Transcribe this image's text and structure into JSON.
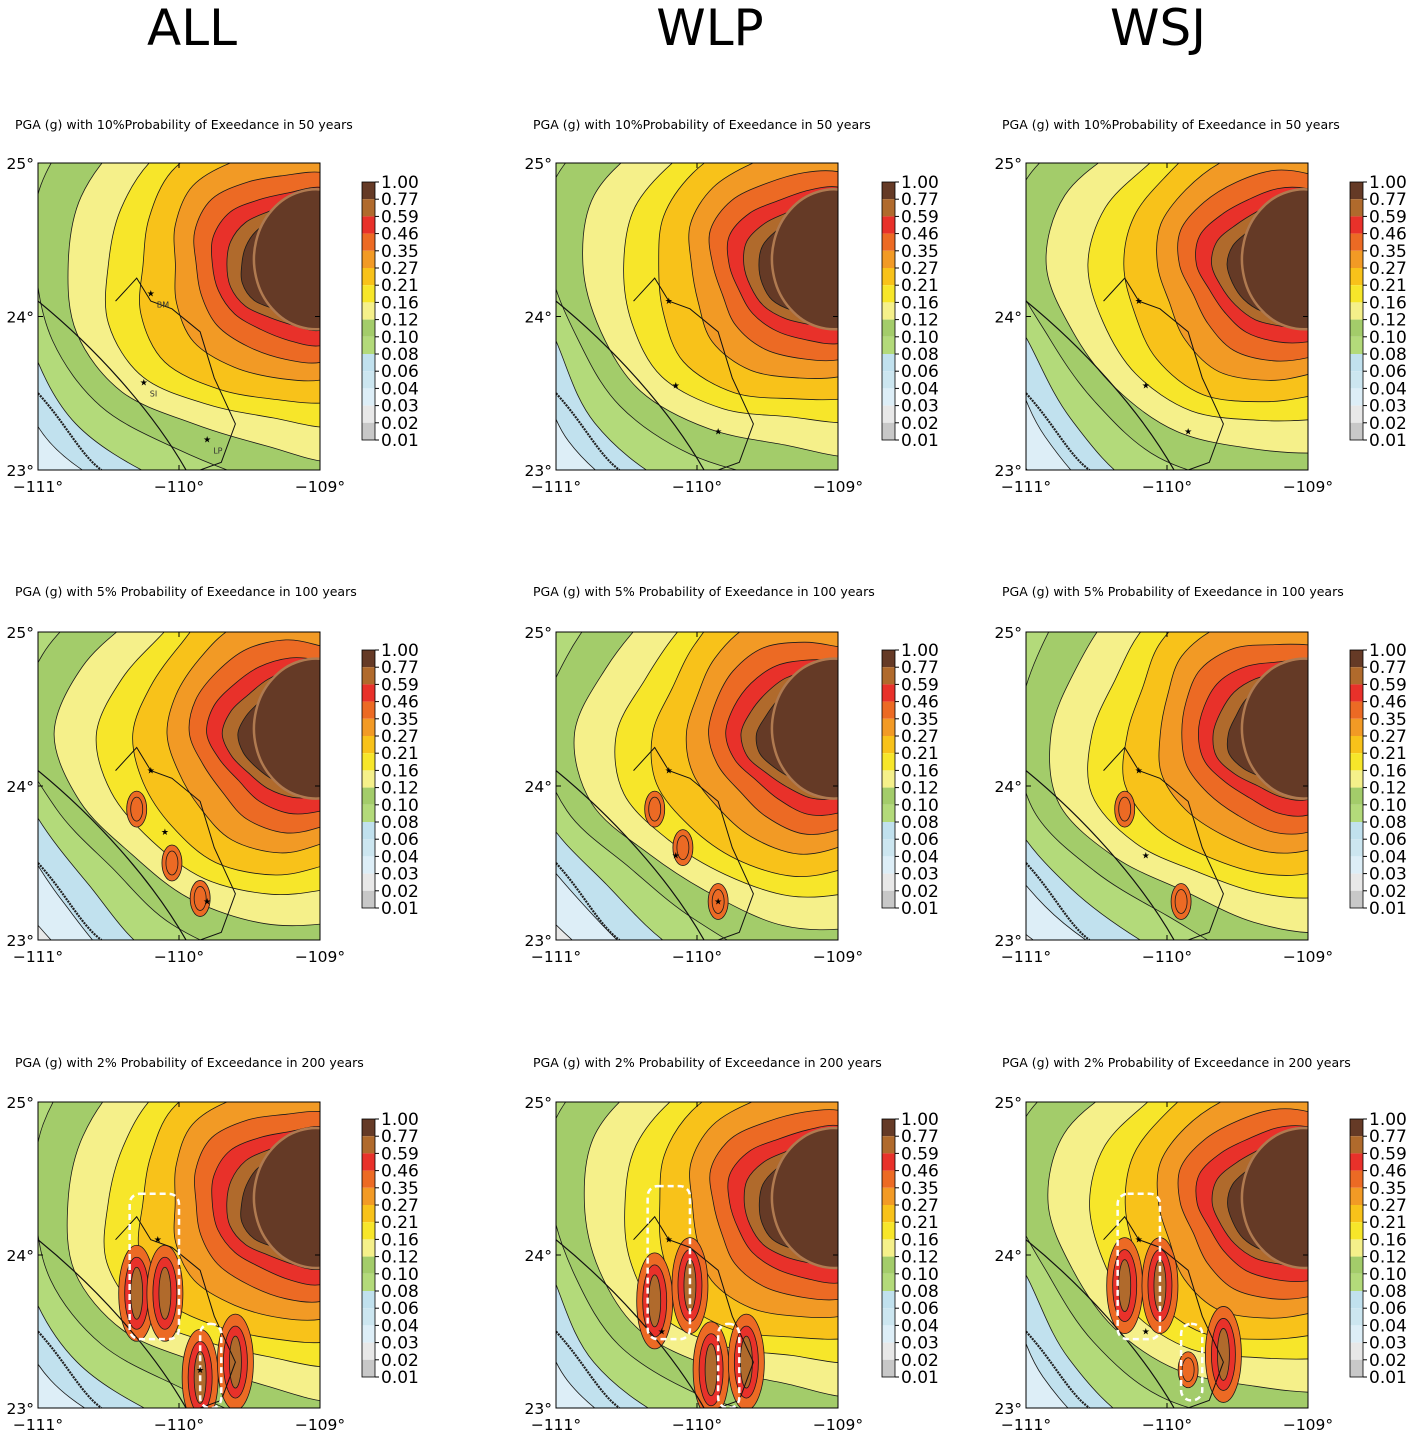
{
  "figure": {
    "columns": [
      "ALL",
      "WLP",
      "WSJ"
    ]
  },
  "chart_data": [
    {
      "type": "heatmap",
      "row": 0,
      "col": 0,
      "model": "ALL",
      "title": "PGA (g) with 10%Probability of Exeedance in 50 years",
      "x_ticks": [
        "−111°",
        "−110°",
        "−109°"
      ],
      "y_ticks": [
        "25°",
        "24°",
        "23°"
      ],
      "xlim": [
        -111,
        -109
      ],
      "ylim": [
        23,
        25
      ],
      "max_class": 10,
      "hot_spots": [],
      "dashed_zones": [],
      "sites": [
        {
          "lon": -110.2,
          "lat": 24.15,
          "label": "BM"
        },
        {
          "lon": -110.25,
          "lat": 23.57,
          "label": "SI"
        },
        {
          "lon": -109.8,
          "lat": 23.2,
          "label": "LP"
        }
      ]
    },
    {
      "type": "heatmap",
      "row": 0,
      "col": 1,
      "model": "WLP",
      "title": "PGA (g) with 10%Probability of Exeedance in 50 years",
      "x_ticks": [
        "−111°",
        "−110°",
        "−109°"
      ],
      "y_ticks": [
        "25°",
        "24°",
        "23°"
      ],
      "xlim": [
        -111,
        -109
      ],
      "ylim": [
        23,
        25
      ],
      "max_class": 10,
      "hot_spots": [],
      "dashed_zones": [],
      "sites": [
        {
          "lon": -110.2,
          "lat": 24.1,
          "label": ""
        },
        {
          "lon": -110.15,
          "lat": 23.55,
          "label": ""
        },
        {
          "lon": -109.85,
          "lat": 23.25,
          "label": ""
        }
      ]
    },
    {
      "type": "heatmap",
      "row": 0,
      "col": 2,
      "model": "WSJ",
      "title": "PGA (g) with 10%Probability of Exeedance in 50 years",
      "x_ticks": [
        "−111°",
        "−110°",
        "−109°"
      ],
      "y_ticks": [
        "25°",
        "24°",
        "23°"
      ],
      "xlim": [
        -111,
        -109
      ],
      "ylim": [
        23,
        25
      ],
      "max_class": 10,
      "hot_spots": [],
      "dashed_zones": [],
      "sites": [
        {
          "lon": -110.2,
          "lat": 24.1,
          "label": ""
        },
        {
          "lon": -110.15,
          "lat": 23.55,
          "label": ""
        },
        {
          "lon": -109.85,
          "lat": 23.25,
          "label": ""
        }
      ]
    },
    {
      "type": "heatmap",
      "row": 1,
      "col": 0,
      "model": "ALL",
      "title": "PGA (g) with 5% Probability of Exeedance in 100 years",
      "x_ticks": [
        "−111°",
        "−110°",
        "−109°"
      ],
      "y_ticks": [
        "25°",
        "24°",
        "23°"
      ],
      "xlim": [
        -111,
        -109
      ],
      "ylim": [
        23,
        25
      ],
      "max_class": 10,
      "dashed_zones": [],
      "hot_spots": [
        {
          "lon": -110.3,
          "lat": 23.85,
          "level": 9
        },
        {
          "lon": -110.05,
          "lat": 23.5,
          "level": 9
        },
        {
          "lon": -109.85,
          "lat": 23.27,
          "level": 9
        }
      ],
      "sites": [
        {
          "lon": -110.2,
          "lat": 24.1,
          "label": ""
        },
        {
          "lon": -110.1,
          "lat": 23.7,
          "label": ""
        },
        {
          "lon": -109.8,
          "lat": 23.25,
          "label": ""
        }
      ]
    },
    {
      "type": "heatmap",
      "row": 1,
      "col": 1,
      "model": "WLP",
      "title": "PGA (g) with 5% Probability of Exeedance in 100 years",
      "x_ticks": [
        "−111°",
        "−110°",
        "−109°"
      ],
      "y_ticks": [
        "25°",
        "24°",
        "23°"
      ],
      "xlim": [
        -111,
        -109
      ],
      "ylim": [
        23,
        25
      ],
      "max_class": 10,
      "dashed_zones": [],
      "hot_spots": [
        {
          "lon": -110.3,
          "lat": 23.85,
          "level": 9
        },
        {
          "lon": -110.1,
          "lat": 23.6,
          "level": 9
        },
        {
          "lon": -109.85,
          "lat": 23.25,
          "level": 9
        }
      ],
      "sites": [
        {
          "lon": -110.2,
          "lat": 24.1,
          "label": ""
        },
        {
          "lon": -110.15,
          "lat": 23.55,
          "label": ""
        },
        {
          "lon": -109.85,
          "lat": 23.25,
          "label": ""
        }
      ]
    },
    {
      "type": "heatmap",
      "row": 1,
      "col": 2,
      "model": "WSJ",
      "title": "PGA (g) with 5% Probability of Exeedance in 100 years",
      "x_ticks": [
        "−111°",
        "−110°",
        "−109°"
      ],
      "y_ticks": [
        "25°",
        "24°",
        "23°"
      ],
      "xlim": [
        -111,
        -109
      ],
      "ylim": [
        23,
        25
      ],
      "max_class": 10,
      "dashed_zones": [],
      "hot_spots": [
        {
          "lon": -110.3,
          "lat": 23.85,
          "level": 9
        },
        {
          "lon": -109.9,
          "lat": 23.25,
          "level": 9
        }
      ],
      "sites": [
        {
          "lon": -110.2,
          "lat": 24.1,
          "label": ""
        },
        {
          "lon": -110.15,
          "lat": 23.55,
          "label": ""
        }
      ]
    },
    {
      "type": "heatmap",
      "row": 2,
      "col": 0,
      "model": "ALL",
      "title": "PGA (g) with 2% Probability of Exceedance in 200 years",
      "x_ticks": [
        "−111°",
        "−110°",
        "−109°"
      ],
      "y_ticks": [
        "25°",
        "24°",
        "23°"
      ],
      "xlim": [
        -111,
        -109
      ],
      "ylim": [
        23,
        25
      ],
      "max_class": 10,
      "hot_spots": [
        {
          "lon": -110.3,
          "lat": 23.75,
          "level": 11
        },
        {
          "lon": -110.1,
          "lat": 23.75,
          "level": 11
        },
        {
          "lon": -109.85,
          "lat": 23.2,
          "level": 11
        },
        {
          "lon": -109.6,
          "lat": 23.3,
          "level": 11
        }
      ],
      "dashed_zones": [
        {
          "lon_min": -110.35,
          "lon_max": -110.0,
          "lat_min": 23.45,
          "lat_max": 24.4
        },
        {
          "lon_min": -109.85,
          "lon_max": -109.7,
          "lat_min": 23.0,
          "lat_max": 23.55
        }
      ],
      "sites": [
        {
          "lon": -110.15,
          "lat": 24.1,
          "label": ""
        },
        {
          "lon": -109.85,
          "lat": 23.25,
          "label": ""
        }
      ]
    },
    {
      "type": "heatmap",
      "row": 2,
      "col": 1,
      "model": "WLP",
      "title": "PGA (g) with 2% Probability of Exceedance in 200 years",
      "x_ticks": [
        "−111°",
        "−110°",
        "−109°"
      ],
      "y_ticks": [
        "25°",
        "24°",
        "23°"
      ],
      "xlim": [
        -111,
        -109
      ],
      "ylim": [
        23,
        25
      ],
      "max_class": 10,
      "hot_spots": [
        {
          "lon": -110.3,
          "lat": 23.7,
          "level": 11
        },
        {
          "lon": -110.05,
          "lat": 23.8,
          "level": 11
        },
        {
          "lon": -109.9,
          "lat": 23.25,
          "level": 11
        },
        {
          "lon": -109.65,
          "lat": 23.3,
          "level": 11
        }
      ],
      "dashed_zones": [
        {
          "lon_min": -110.35,
          "lon_max": -110.05,
          "lat_min": 23.45,
          "lat_max": 24.45
        },
        {
          "lon_min": -109.85,
          "lon_max": -109.7,
          "lat_min": 23.0,
          "lat_max": 23.55
        }
      ],
      "sites": [
        {
          "lon": -110.2,
          "lat": 24.1,
          "label": ""
        },
        {
          "lon": -110.25,
          "lat": 23.5,
          "label": ""
        }
      ]
    },
    {
      "type": "heatmap",
      "row": 2,
      "col": 2,
      "model": "WSJ",
      "title": "PGA (g) with 2% Probability of Exceedance in 200 years",
      "x_ticks": [
        "−111°",
        "−110°",
        "−109°"
      ],
      "y_ticks": [
        "25°",
        "24°",
        "23°"
      ],
      "xlim": [
        -111,
        -109
      ],
      "ylim": [
        23,
        25
      ],
      "max_class": 10,
      "hot_spots": [
        {
          "lon": -110.3,
          "lat": 23.8,
          "level": 11
        },
        {
          "lon": -110.05,
          "lat": 23.8,
          "level": 11
        },
        {
          "lon": -109.85,
          "lat": 23.25,
          "level": 10
        },
        {
          "lon": -109.6,
          "lat": 23.35,
          "level": 11
        }
      ],
      "dashed_zones": [
        {
          "lon_min": -110.35,
          "lon_max": -110.05,
          "lat_min": 23.45,
          "lat_max": 24.4
        },
        {
          "lon_min": -109.9,
          "lon_max": -109.75,
          "lat_min": 23.05,
          "lat_max": 23.55
        }
      ],
      "sites": [
        {
          "lon": -110.2,
          "lat": 24.1,
          "label": ""
        },
        {
          "lon": -110.15,
          "lat": 23.5,
          "label": ""
        }
      ]
    }
  ],
  "colorbar": {
    "levels": [
      "1.00",
      "0.77",
      "0.59",
      "0.46",
      "0.35",
      "0.27",
      "0.21",
      "0.16",
      "0.12",
      "0.10",
      "0.08",
      "0.06",
      "0.04",
      "0.03",
      "0.02",
      "0.01"
    ],
    "colors": [
      "#fefefe",
      "#c8c8c8",
      "#e8e8e8",
      "#ddeef7",
      "#cce6f0",
      "#c1e1ee",
      "#b3da7a",
      "#a3cc6a",
      "#f5f08a",
      "#f7e62a",
      "#f8c21a",
      "#f29a25",
      "#ec6a24",
      "#e8312a",
      "#b06a2c",
      "#653a26"
    ]
  }
}
